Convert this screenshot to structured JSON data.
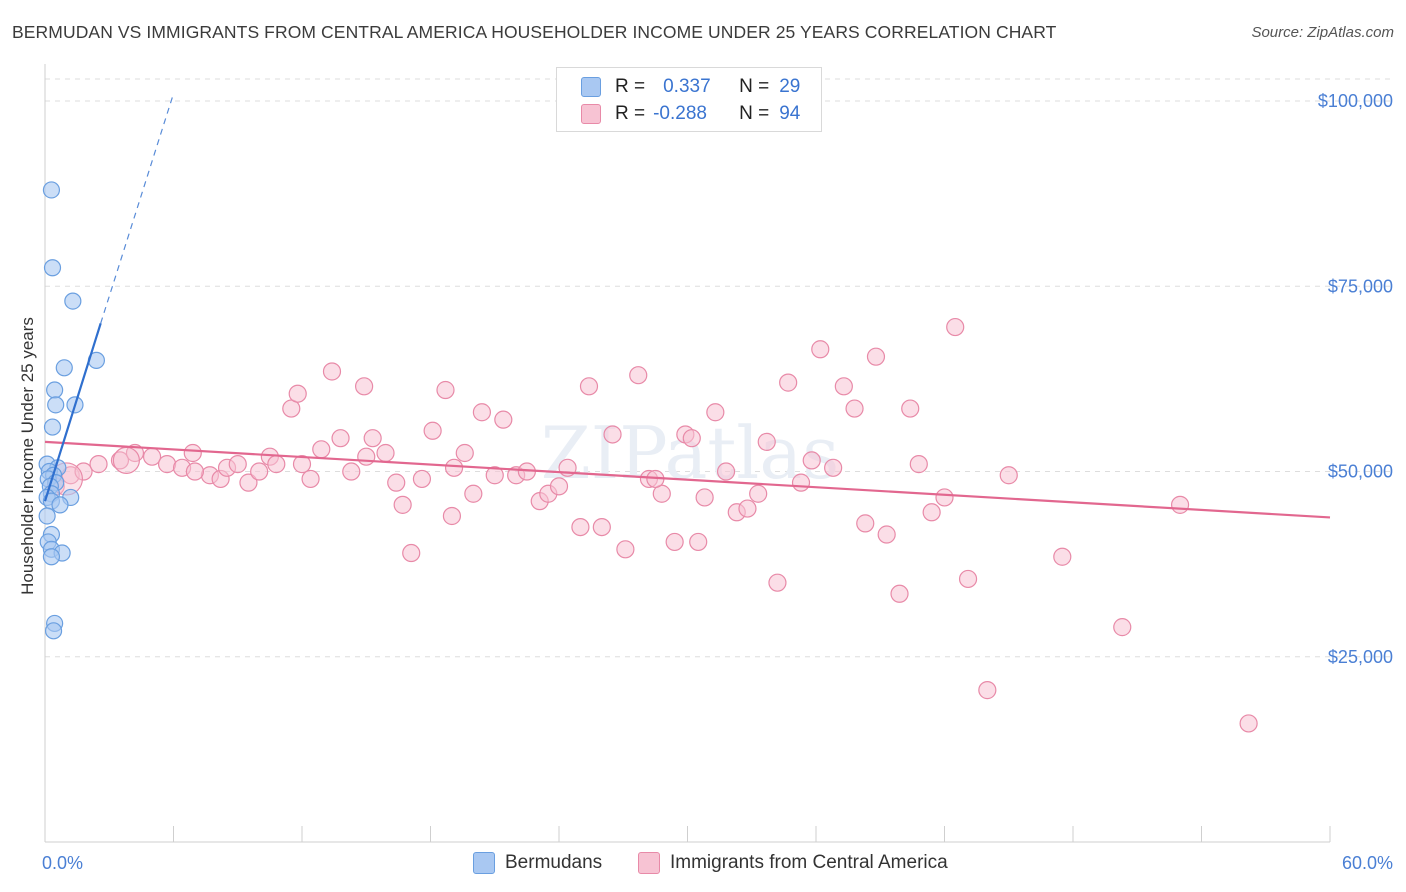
{
  "title": "BERMUDAN VS IMMIGRANTS FROM CENTRAL AMERICA HOUSEHOLDER INCOME UNDER 25 YEARS CORRELATION CHART",
  "source": "Source: ZipAtlas.com",
  "watermark": "ZIPatlas",
  "legend": {
    "rows": [
      {
        "r_label": "R =",
        "r_value": "0.337",
        "n_label": "N =",
        "n_value": "29"
      },
      {
        "r_label": "R =",
        "r_value": "-0.288",
        "n_label": "N =",
        "n_value": "94"
      }
    ]
  },
  "bottom_legend": [
    "Bermudans",
    "Immigrants from Central America"
  ],
  "colors": {
    "blue_fill": "#a9c8f2",
    "blue_stroke": "#6a9fe0",
    "blue_line": "#2f6fce",
    "pink_fill": "#f7c3d3",
    "pink_stroke": "#e88aa8",
    "pink_line": "#e2678f",
    "tick_text": "#4a7fd4",
    "grid": "#dddddd"
  },
  "chart_data": {
    "type": "scatter",
    "title": "BERMUDAN VS IMMIGRANTS FROM CENTRAL AMERICA HOUSEHOLDER INCOME UNDER 25 YEARS CORRELATION CHART",
    "xlabel": "",
    "ylabel": "Householder Income Under 25 years",
    "xlim": [
      0,
      60
    ],
    "ylim": [
      0,
      105000
    ],
    "x_tick_labels": [
      "0.0%",
      "60.0%"
    ],
    "y_ticks": [
      25000,
      50000,
      75000,
      100000
    ],
    "y_tick_labels": [
      "$25,000",
      "$50,000",
      "$75,000",
      "$100,000"
    ],
    "grid": "horizontal dashed",
    "legend_position": "top-center",
    "series": [
      {
        "name": "Bermudans",
        "R": 0.337,
        "N": 29,
        "trend": {
          "x0": 0.0,
          "y0": 46000,
          "x1": 2.6,
          "y1": 70000,
          "dashed_to_x": 6.0,
          "dashed_to_y": 101000
        },
        "points": [
          [
            0.3,
            88000
          ],
          [
            0.35,
            77500
          ],
          [
            1.3,
            73000
          ],
          [
            2.4,
            65000
          ],
          [
            0.9,
            64000
          ],
          [
            0.45,
            61000
          ],
          [
            0.5,
            59000
          ],
          [
            1.4,
            59000
          ],
          [
            0.35,
            56000
          ],
          [
            0.1,
            51000
          ],
          [
            0.6,
            50500
          ],
          [
            0.2,
            50000
          ],
          [
            0.4,
            49500
          ],
          [
            0.15,
            49000
          ],
          [
            0.5,
            48500
          ],
          [
            0.25,
            48000
          ],
          [
            0.3,
            47000
          ],
          [
            0.1,
            46500
          ],
          [
            1.2,
            46500
          ],
          [
            0.3,
            46000
          ],
          [
            0.7,
            45500
          ],
          [
            0.1,
            44000
          ],
          [
            0.3,
            41500
          ],
          [
            0.15,
            40500
          ],
          [
            0.3,
            39500
          ],
          [
            0.8,
            39000
          ],
          [
            0.3,
            38500
          ],
          [
            0.45,
            29500
          ],
          [
            0.4,
            28500
          ]
        ]
      },
      {
        "name": "Immigrants from Central America",
        "R": -0.288,
        "N": 94,
        "trend": {
          "x0": 0.0,
          "y0": 54000,
          "x1": 60.0,
          "y1": 43800
        },
        "points": [
          [
            0.5,
            48000
          ],
          [
            1.2,
            49500
          ],
          [
            1.8,
            50000
          ],
          [
            2.5,
            51000
          ],
          [
            3.5,
            51500
          ],
          [
            4.2,
            52500
          ],
          [
            5.0,
            52000
          ],
          [
            5.7,
            51000
          ],
          [
            6.4,
            50500
          ],
          [
            6.9,
            52500
          ],
          [
            7.7,
            49500
          ],
          [
            8.2,
            49000
          ],
          [
            8.5,
            50500
          ],
          [
            9.0,
            51000
          ],
          [
            9.5,
            48500
          ],
          [
            10.0,
            50000
          ],
          [
            10.5,
            52000
          ],
          [
            10.8,
            51000
          ],
          [
            11.5,
            58500
          ],
          [
            11.8,
            60500
          ],
          [
            12.4,
            49000
          ],
          [
            12.9,
            53000
          ],
          [
            13.4,
            63500
          ],
          [
            13.8,
            54500
          ],
          [
            14.3,
            50000
          ],
          [
            14.9,
            61500
          ],
          [
            15.3,
            54500
          ],
          [
            15.9,
            52500
          ],
          [
            16.4,
            48500
          ],
          [
            16.7,
            45500
          ],
          [
            17.1,
            39000
          ],
          [
            17.6,
            49000
          ],
          [
            18.1,
            55500
          ],
          [
            18.7,
            61000
          ],
          [
            19.1,
            50500
          ],
          [
            19.6,
            52500
          ],
          [
            20.0,
            47000
          ],
          [
            20.4,
            58000
          ],
          [
            21.0,
            49500
          ],
          [
            21.4,
            57000
          ],
          [
            22.0,
            49500
          ],
          [
            22.5,
            50000
          ],
          [
            23.1,
            46000
          ],
          [
            23.5,
            47000
          ],
          [
            24.0,
            48000
          ],
          [
            24.4,
            50500
          ],
          [
            25.0,
            42500
          ],
          [
            25.4,
            61500
          ],
          [
            26.0,
            42500
          ],
          [
            26.5,
            55000
          ],
          [
            27.1,
            39500
          ],
          [
            27.7,
            63000
          ],
          [
            28.2,
            49000
          ],
          [
            28.8,
            47000
          ],
          [
            29.4,
            40500
          ],
          [
            29.9,
            55000
          ],
          [
            30.2,
            54500
          ],
          [
            30.8,
            46500
          ],
          [
            31.3,
            58000
          ],
          [
            31.8,
            50000
          ],
          [
            32.3,
            44500
          ],
          [
            32.8,
            45000
          ],
          [
            33.3,
            47000
          ],
          [
            33.7,
            54000
          ],
          [
            34.2,
            35000
          ],
          [
            34.7,
            62000
          ],
          [
            35.3,
            48500
          ],
          [
            35.8,
            51500
          ],
          [
            36.2,
            66500
          ],
          [
            36.8,
            50500
          ],
          [
            37.3,
            61500
          ],
          [
            37.8,
            58500
          ],
          [
            38.3,
            43000
          ],
          [
            38.8,
            65500
          ],
          [
            39.3,
            41500
          ],
          [
            39.9,
            33500
          ],
          [
            40.4,
            58500
          ],
          [
            40.8,
            51000
          ],
          [
            41.4,
            44500
          ],
          [
            42.0,
            46500
          ],
          [
            42.5,
            69500
          ],
          [
            43.1,
            35500
          ],
          [
            44.0,
            20500
          ],
          [
            45.0,
            49500
          ],
          [
            47.5,
            38500
          ],
          [
            50.3,
            29000
          ],
          [
            53.0,
            45500
          ],
          [
            56.2,
            16000
          ],
          [
            28.5,
            49000
          ],
          [
            30.5,
            40500
          ],
          [
            12.0,
            51000
          ],
          [
            15.0,
            52000
          ],
          [
            7.0,
            50000
          ],
          [
            19.0,
            44000
          ]
        ]
      }
    ]
  }
}
